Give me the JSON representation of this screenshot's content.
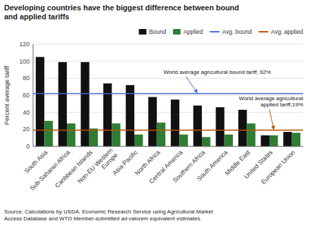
{
  "chart_data": {
    "type": "bar",
    "title": "Developing countries have the biggest difference between bound\nand applied tariffs",
    "ylabel": "Percent average tariff",
    "categories": [
      "South Asia",
      "Sub-Saharan Africa",
      "Caribbean Islands",
      "Non-EU Western\nEurope",
      "Asia-Pacific",
      "North Africa",
      "Central America",
      "Southern Africa",
      "South America",
      "Middle East",
      "United States",
      "European Union"
    ],
    "series": [
      {
        "name": "Bound",
        "color": "#111111",
        "values": [
          105,
          99,
          99,
          74,
          72,
          58,
          55,
          48,
          46,
          43,
          13,
          17
        ]
      },
      {
        "name": "Applied",
        "color": "#2e7d32",
        "values": [
          30,
          27,
          21,
          27,
          14,
          28,
          14,
          11,
          14,
          27,
          13,
          16
        ]
      }
    ],
    "reference_lines": [
      {
        "name": "Avg. bound",
        "value": 62,
        "color": "#4466dd",
        "annotation": "World average agricultural bound tariff, 62%"
      },
      {
        "name": "Avg. applied",
        "value": 19,
        "color": "#bb5500",
        "annotation": "World average agricultural\napplied tariff,19%"
      }
    ],
    "ylim": [
      0,
      120
    ],
    "yticks": [
      0,
      20,
      40,
      60,
      80,
      100,
      120
    ],
    "grid": true,
    "legend": "top-right",
    "source": "Source:  Calculations by USDA, Economic Research Service using Agricultural Market\nAccess Database and WTO Member-submitted ad valorem equivalent estimates."
  }
}
